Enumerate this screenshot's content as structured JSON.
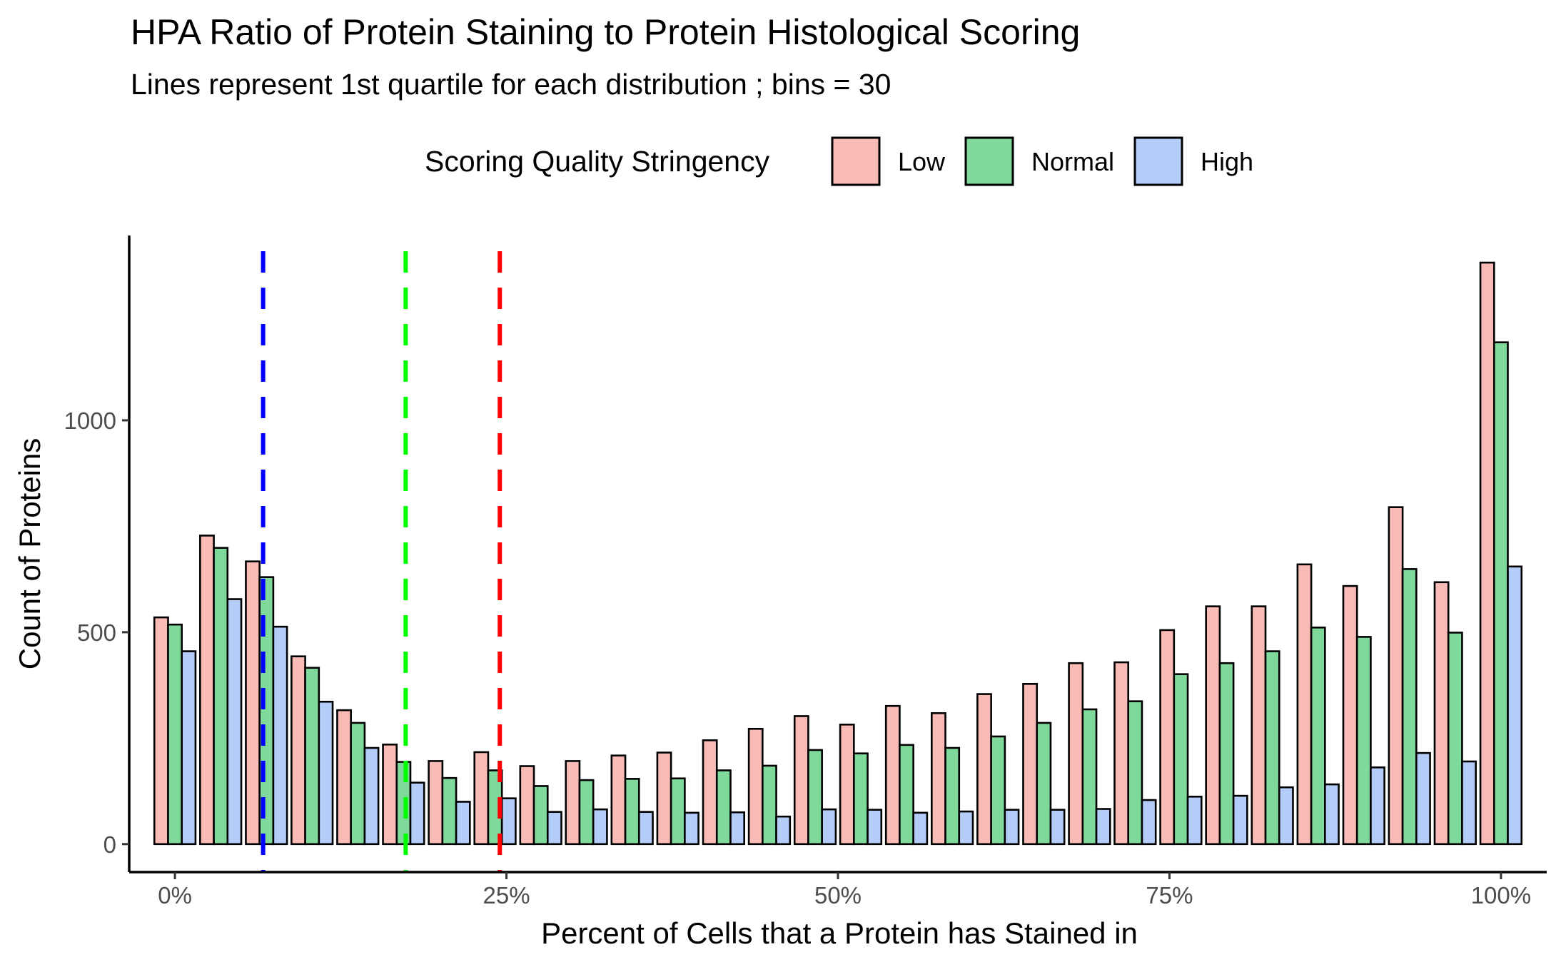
{
  "chart_data": {
    "type": "bar",
    "title": "HPA Ratio of Protein Staining to Protein Histological Scoring",
    "subtitle": "Lines represent 1st quartile for each distribution ; bins = 30",
    "xlabel": "Percent of Cells that a Protein has Stained in",
    "ylabel": "Count of Proteins",
    "legend": {
      "title": "Scoring Quality Stringency",
      "position": "top",
      "entries": [
        {
          "label": "Low",
          "color": "#F8BBB6"
        },
        {
          "label": "Normal",
          "color": "#7FD99A"
        },
        {
          "label": "High",
          "color": "#B3CCF8"
        }
      ]
    },
    "xlim": [
      -0.0345,
      1.0345
    ],
    "ylim": [
      -66,
      1436
    ],
    "x_ticks": [
      {
        "value": 0,
        "label": "0%"
      },
      {
        "value": 0.25,
        "label": "25%"
      },
      {
        "value": 0.5,
        "label": "50%"
      },
      {
        "value": 0.75,
        "label": "75%"
      },
      {
        "value": 1,
        "label": "100%"
      }
    ],
    "y_ticks": [
      {
        "value": 0,
        "label": "0"
      },
      {
        "value": 500,
        "label": "500"
      },
      {
        "value": 1000,
        "label": "1000"
      }
    ],
    "grid": false,
    "bins": 30,
    "bin_centers": [
      0,
      0.0345,
      0.069,
      0.1034,
      0.1379,
      0.1724,
      0.2069,
      0.2414,
      0.2759,
      0.3103,
      0.3448,
      0.3793,
      0.4138,
      0.4483,
      0.4828,
      0.5172,
      0.5517,
      0.5862,
      0.6207,
      0.6552,
      0.6897,
      0.7241,
      0.7586,
      0.7931,
      0.8276,
      0.8621,
      0.8966,
      0.931,
      0.9655,
      1.0
    ],
    "series": [
      {
        "name": "Low",
        "color": "#F8BBB6",
        "values": [
          535,
          728,
          667,
          443,
          316,
          235,
          196,
          217,
          184,
          196,
          209,
          216,
          245,
          272,
          302,
          282,
          326,
          309,
          354,
          378,
          427,
          429,
          505,
          561,
          561,
          660,
          609,
          795,
          618,
          1372
        ]
      },
      {
        "name": "Normal",
        "color": "#7FD99A",
        "values": [
          518,
          699,
          630,
          416,
          286,
          194,
          156,
          174,
          137,
          151,
          154,
          155,
          174,
          185,
          222,
          214,
          234,
          227,
          254,
          286,
          318,
          337,
          401,
          427,
          455,
          511,
          489,
          649,
          499,
          1184
        ]
      },
      {
        "name": "High",
        "color": "#B3CCF8",
        "values": [
          455,
          578,
          513,
          336,
          227,
          145,
          100,
          108,
          76,
          82,
          76,
          74,
          75,
          65,
          82,
          81,
          74,
          77,
          81,
          81,
          83,
          104,
          112,
          114,
          134,
          141,
          181,
          215,
          195,
          655
        ]
      }
    ],
    "quartile_lines": [
      {
        "series": "High",
        "x": 0.0665,
        "color": "#0000FF"
      },
      {
        "series": "Normal",
        "x": 0.174,
        "color": "#00FF00"
      },
      {
        "series": "Low",
        "x": 0.245,
        "color": "#FF0000"
      }
    ]
  }
}
